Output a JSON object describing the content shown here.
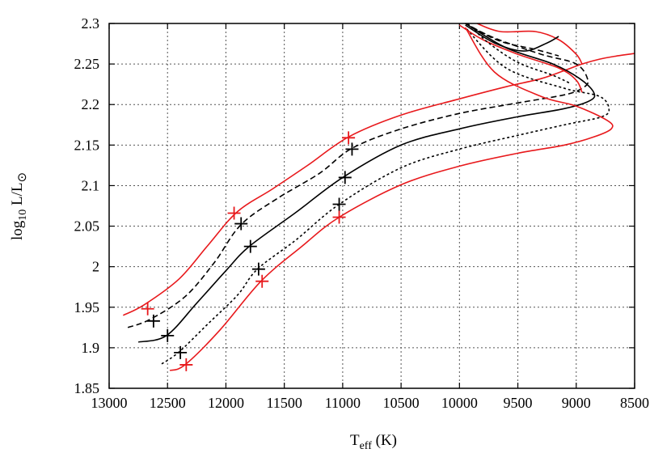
{
  "chart_data": {
    "type": "line",
    "title": "",
    "xlabel_main": "T",
    "xlabel_sub": "eff",
    "xlabel_unit": " (K)",
    "ylabel_pre": "log",
    "ylabel_sub": "10",
    "ylabel_main": " L/L",
    "ylabel_sym": "⊙",
    "xlim": [
      13000,
      8500
    ],
    "ylim": [
      1.85,
      2.3
    ],
    "x_reversed": true,
    "grid": true,
    "x_ticks": [
      13000,
      12500,
      12000,
      11500,
      11000,
      10500,
      10000,
      9500,
      9000,
      8500
    ],
    "y_ticks": [
      1.85,
      1.9,
      1.95,
      2.0,
      2.05,
      2.1,
      2.15,
      2.2,
      2.25,
      2.3
    ],
    "x_tick_labels": [
      "13000",
      "12500",
      "12000",
      "11500",
      "11000",
      "10500",
      "10000",
      "9500",
      "9000",
      "8500"
    ],
    "y_tick_labels": [
      "1.85",
      "1.9",
      "1.95",
      "2",
      "2.05",
      "2.1",
      "2.15",
      "2.2",
      "2.25",
      "2.3"
    ],
    "colors": {
      "red": "#e8191c",
      "black": "#000000"
    },
    "series": [
      {
        "style": "solid",
        "color": "#e8191c",
        "points": [
          [
            12880,
            1.94
          ],
          [
            12700,
            1.953
          ],
          [
            12400,
            1.985
          ],
          [
            12150,
            2.027
          ],
          [
            11900,
            2.068
          ],
          [
            11600,
            2.096
          ],
          [
            11300,
            2.125
          ],
          [
            10950,
            2.16
          ],
          [
            10500,
            2.187
          ],
          [
            10000,
            2.207
          ],
          [
            9600,
            2.222
          ],
          [
            9300,
            2.232
          ],
          [
            9100,
            2.242
          ],
          [
            8950,
            2.25
          ],
          [
            8800,
            2.256
          ],
          [
            8650,
            2.26
          ],
          [
            8500,
            2.263
          ]
        ]
      },
      {
        "style": "dashed",
        "color": "#000000",
        "points": [
          [
            12840,
            1.925
          ],
          [
            12650,
            1.935
          ],
          [
            12350,
            1.963
          ],
          [
            12100,
            2.005
          ],
          [
            11870,
            2.052
          ],
          [
            11550,
            2.085
          ],
          [
            11200,
            2.115
          ],
          [
            10920,
            2.146
          ],
          [
            10500,
            2.17
          ],
          [
            10000,
            2.189
          ],
          [
            9500,
            2.202
          ],
          [
            9100,
            2.212
          ],
          [
            8950,
            2.22
          ],
          [
            8900,
            2.23
          ],
          [
            9000,
            2.25
          ],
          [
            9300,
            2.262
          ],
          [
            9700,
            2.282
          ],
          [
            9950,
            2.3
          ]
        ]
      },
      {
        "style": "solid",
        "color": "#000000",
        "points": [
          [
            12750,
            1.907
          ],
          [
            12510,
            1.915
          ],
          [
            12250,
            1.955
          ],
          [
            12000,
            1.995
          ],
          [
            11800,
            2.025
          ],
          [
            11400,
            2.067
          ],
          [
            11000,
            2.11
          ],
          [
            10500,
            2.15
          ],
          [
            10000,
            2.17
          ],
          [
            9500,
            2.185
          ],
          [
            9100,
            2.195
          ],
          [
            8880,
            2.205
          ],
          [
            8850,
            2.215
          ],
          [
            8970,
            2.232
          ],
          [
            9200,
            2.25
          ],
          [
            9600,
            2.27
          ],
          [
            9950,
            2.3
          ]
        ]
      },
      {
        "style": "dotted",
        "color": "#000000",
        "points": [
          [
            12550,
            1.88
          ],
          [
            12400,
            1.895
          ],
          [
            12150,
            1.93
          ],
          [
            11900,
            1.965
          ],
          [
            11730,
            1.997
          ],
          [
            11400,
            2.033
          ],
          [
            11030,
            2.077
          ],
          [
            10500,
            2.122
          ],
          [
            10000,
            2.145
          ],
          [
            9500,
            2.162
          ],
          [
            9100,
            2.175
          ],
          [
            8780,
            2.185
          ],
          [
            8720,
            2.195
          ],
          [
            8800,
            2.21
          ],
          [
            9100,
            2.22
          ],
          [
            9600,
            2.245
          ],
          [
            9950,
            2.295
          ]
        ]
      },
      {
        "style": "solid",
        "color": "#e8191c",
        "points": [
          [
            12480,
            1.872
          ],
          [
            12350,
            1.879
          ],
          [
            12050,
            1.922
          ],
          [
            11700,
            1.982
          ],
          [
            11350,
            2.025
          ],
          [
            11030,
            2.061
          ],
          [
            10500,
            2.101
          ],
          [
            10000,
            2.124
          ],
          [
            9500,
            2.14
          ],
          [
            9100,
            2.15
          ],
          [
            8850,
            2.16
          ],
          [
            8700,
            2.17
          ],
          [
            8730,
            2.18
          ],
          [
            9000,
            2.198
          ],
          [
            9300,
            2.21
          ],
          [
            9700,
            2.24
          ],
          [
            9950,
            2.295
          ]
        ]
      },
      {
        "style": "solid",
        "color": "#e8191c",
        "points": [
          [
            10000,
            2.298
          ],
          [
            9800,
            2.28
          ],
          [
            9500,
            2.262
          ],
          [
            9150,
            2.245
          ],
          [
            9000,
            2.23
          ],
          [
            8950,
            2.215
          ]
        ]
      },
      {
        "style": "solid",
        "color": "#e8191c",
        "points": [
          [
            9850,
            2.3
          ],
          [
            9650,
            2.29
          ],
          [
            9350,
            2.29
          ],
          [
            9150,
            2.28
          ],
          [
            9000,
            2.262
          ],
          [
            8950,
            2.25
          ]
        ]
      },
      {
        "style": "dotted",
        "color": "#000000",
        "points": [
          [
            9930,
            2.3
          ],
          [
            9750,
            2.276
          ],
          [
            9500,
            2.252
          ],
          [
            9200,
            2.236
          ],
          [
            9050,
            2.226
          ]
        ]
      },
      {
        "style": "dashed",
        "color": "#000000",
        "points": [
          [
            9900,
            2.296
          ],
          [
            9650,
            2.278
          ],
          [
            9350,
            2.268
          ],
          [
            9150,
            2.26
          ]
        ]
      },
      {
        "style": "solid",
        "color": "#000000",
        "points": [
          [
            9950,
            2.298
          ],
          [
            9700,
            2.276
          ],
          [
            9450,
            2.266
          ],
          [
            9250,
            2.276
          ],
          [
            9150,
            2.284
          ]
        ]
      }
    ],
    "markers": [
      {
        "color": "#e8191c",
        "x": 12670,
        "y": 1.948
      },
      {
        "color": "#000000",
        "x": 12620,
        "y": 1.933
      },
      {
        "color": "#000000",
        "x": 12500,
        "y": 1.915
      },
      {
        "color": "#000000",
        "x": 12390,
        "y": 1.894
      },
      {
        "color": "#e8191c",
        "x": 12340,
        "y": 1.879
      },
      {
        "color": "#e8191c",
        "x": 11930,
        "y": 2.066
      },
      {
        "color": "#000000",
        "x": 11870,
        "y": 2.053
      },
      {
        "color": "#000000",
        "x": 11790,
        "y": 2.025
      },
      {
        "color": "#000000",
        "x": 11720,
        "y": 1.997
      },
      {
        "color": "#e8191c",
        "x": 11690,
        "y": 1.982
      },
      {
        "color": "#e8191c",
        "x": 10950,
        "y": 2.159
      },
      {
        "color": "#000000",
        "x": 10920,
        "y": 2.145
      },
      {
        "color": "#000000",
        "x": 10980,
        "y": 2.11
      },
      {
        "color": "#000000",
        "x": 11030,
        "y": 2.077
      },
      {
        "color": "#e8191c",
        "x": 11030,
        "y": 2.061
      }
    ]
  }
}
